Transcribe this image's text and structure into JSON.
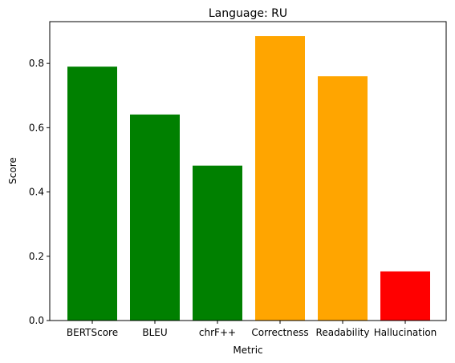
{
  "chart_data": {
    "type": "bar",
    "title": "Language: RU",
    "xlabel": "Metric",
    "ylabel": "Score",
    "categories": [
      "BERTScore",
      "BLEU",
      "chrF++",
      "Correctness",
      "Readability",
      "Hallucination"
    ],
    "values": [
      0.79,
      0.641,
      0.482,
      0.885,
      0.76,
      0.153
    ],
    "bar_colors": [
      "#008000",
      "#008000",
      "#008000",
      "#FFA500",
      "#FFA500",
      "#FF0000"
    ],
    "ylim": [
      0,
      0.93
    ],
    "yticks": [
      0.0,
      0.2,
      0.4,
      0.6,
      0.8
    ],
    "ytick_labels": [
      "0.0",
      "0.2",
      "0.4",
      "0.6",
      "0.8"
    ],
    "grid": false,
    "legend": "none"
  }
}
